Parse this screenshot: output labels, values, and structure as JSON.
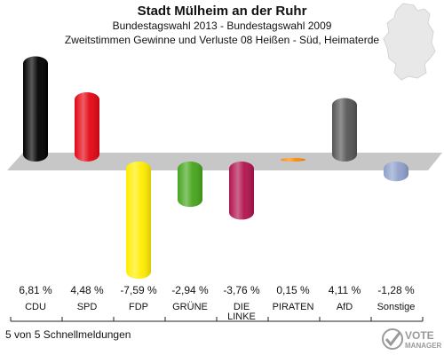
{
  "header": {
    "title": "Stadt Mülheim an der Ruhr",
    "subtitle": "Bundestagswahl 2013 - Bundestagswahl 2009",
    "subtitle2": "Zweitstimmen Gewinne und Verluste 08 Heißen - Süd, Heimaterde"
  },
  "footer": {
    "status": "5 von 5 Schnellmeldungen"
  },
  "logo": {
    "text": "VOTE",
    "subtext": "MANAGER"
  },
  "chart_data": {
    "type": "bar",
    "categories": [
      "CDU",
      "SPD",
      "FDP",
      "GRÜNE",
      "DIE LINKE",
      "PIRATEN",
      "AfD",
      "Sonstige"
    ],
    "values": [
      6.81,
      4.48,
      -7.59,
      -2.94,
      -3.76,
      0.15,
      4.11,
      -1.28
    ],
    "value_labels": [
      "6,81 %",
      "4,48 %",
      "-7,59 %",
      "-2,94 %",
      "-3,76 %",
      "0,15 %",
      "4,11 %",
      "-1,28 %"
    ],
    "colors": [
      "#000000",
      "#e30613",
      "#ffed00",
      "#46a51d",
      "#b1134d",
      "#ff8800",
      "#555555",
      "#8fa0cc"
    ],
    "ylim": [
      -8,
      7.5
    ]
  }
}
